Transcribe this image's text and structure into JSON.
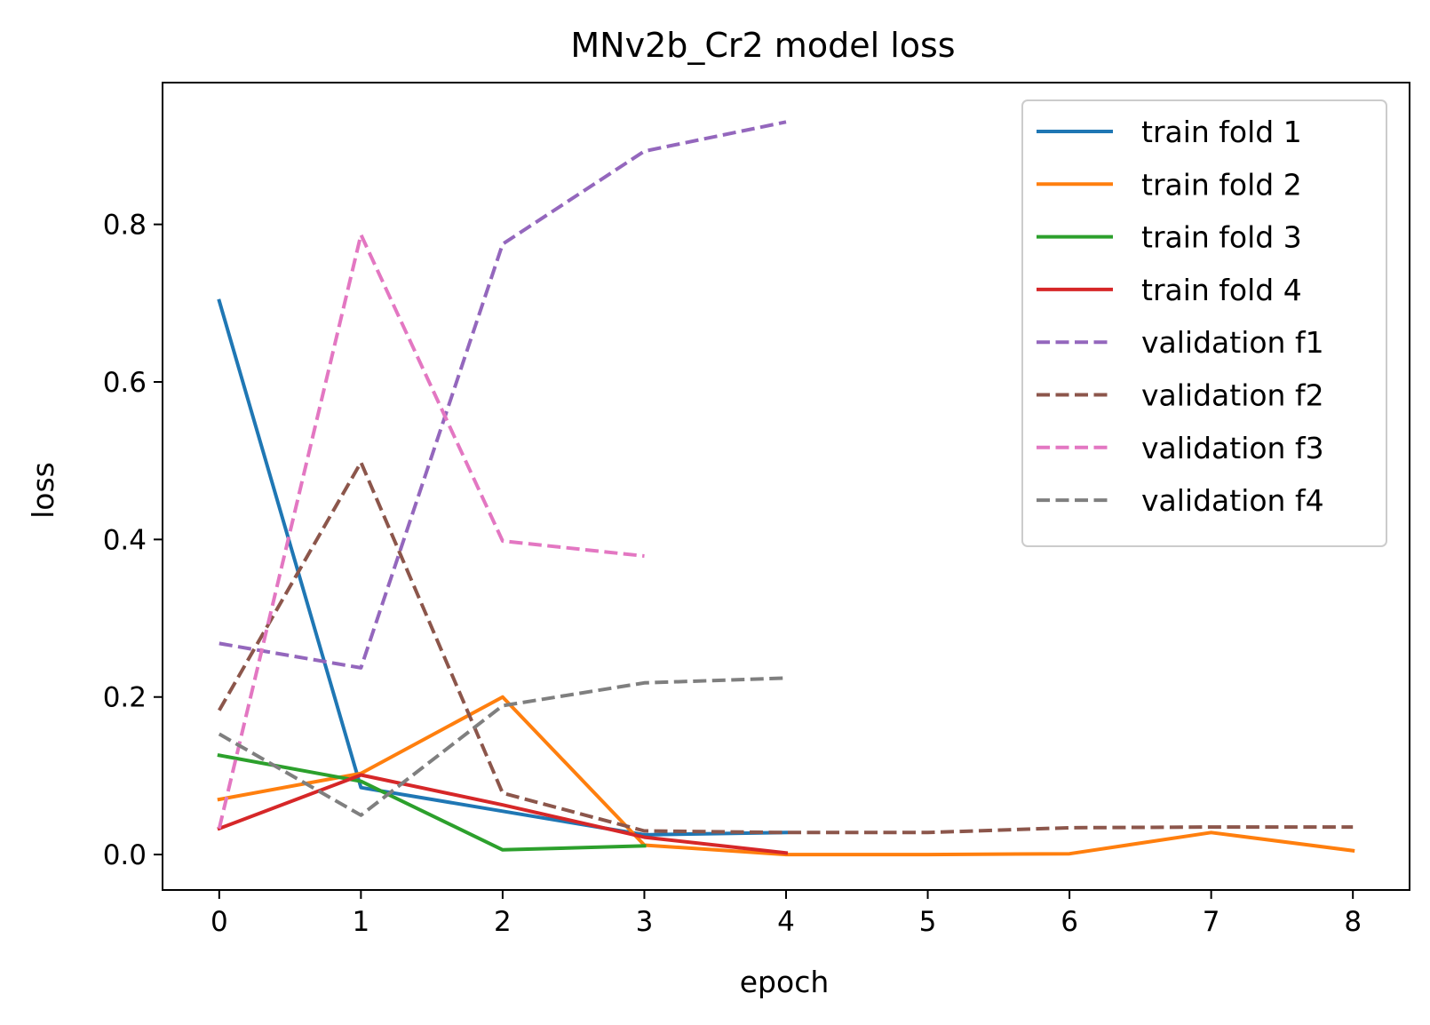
{
  "chart_data": {
    "type": "line",
    "title": "MNv2b_Cr2 model loss",
    "xlabel": "epoch",
    "ylabel": "loss",
    "xlim": [
      -0.4,
      8.4
    ],
    "ylim": [
      -0.045,
      0.98
    ],
    "xticks": [
      0,
      1,
      2,
      3,
      4,
      5,
      6,
      7,
      8
    ],
    "xtick_labels": [
      "0",
      "1",
      "2",
      "3",
      "4",
      "5",
      "6",
      "7",
      "8"
    ],
    "yticks": [
      0.0,
      0.2,
      0.4,
      0.6,
      0.8
    ],
    "ytick_labels": [
      "0.0",
      "0.2",
      "0.4",
      "0.6",
      "0.8"
    ],
    "grid": false,
    "legend_position": "upper-right",
    "series": [
      {
        "name": "train fold 1",
        "style": "solid",
        "color": "#1f77b4",
        "x": [
          0,
          1,
          2,
          3,
          4
        ],
        "y": [
          0.703,
          0.085,
          0.055,
          0.025,
          0.028
        ]
      },
      {
        "name": "train fold 2",
        "style": "solid",
        "color": "#ff7f0e",
        "x": [
          0,
          1,
          2,
          3,
          4,
          5,
          6,
          7,
          8
        ],
        "y": [
          0.07,
          0.103,
          0.2,
          0.012,
          0.0,
          0.0,
          0.001,
          0.028,
          0.005
        ]
      },
      {
        "name": "train fold 3",
        "style": "solid",
        "color": "#2ca02c",
        "x": [
          0,
          1,
          2,
          3
        ],
        "y": [
          0.126,
          0.093,
          0.006,
          0.011
        ]
      },
      {
        "name": "train fold 4",
        "style": "solid",
        "color": "#d62728",
        "x": [
          0,
          1,
          2,
          3,
          4
        ],
        "y": [
          0.033,
          0.101,
          0.063,
          0.022,
          0.002
        ]
      },
      {
        "name": "validation f1",
        "style": "dashed",
        "color": "#9467bd",
        "x": [
          0,
          1,
          2,
          3,
          4
        ],
        "y": [
          0.268,
          0.237,
          0.775,
          0.893,
          0.93
        ]
      },
      {
        "name": "validation f2",
        "style": "dashed",
        "color": "#8c564b",
        "x": [
          0,
          1,
          2,
          3,
          4,
          5,
          6,
          7,
          8
        ],
        "y": [
          0.183,
          0.498,
          0.078,
          0.03,
          0.028,
          0.028,
          0.034,
          0.035,
          0.035
        ]
      },
      {
        "name": "validation f3",
        "style": "dashed",
        "color": "#e377c2",
        "x": [
          0,
          1,
          2,
          3
        ],
        "y": [
          0.033,
          0.787,
          0.398,
          0.379
        ]
      },
      {
        "name": "validation f4",
        "style": "dashed",
        "color": "#7f7f7f",
        "x": [
          0,
          1,
          2,
          3,
          4
        ],
        "y": [
          0.153,
          0.05,
          0.189,
          0.218,
          0.224
        ]
      }
    ]
  }
}
